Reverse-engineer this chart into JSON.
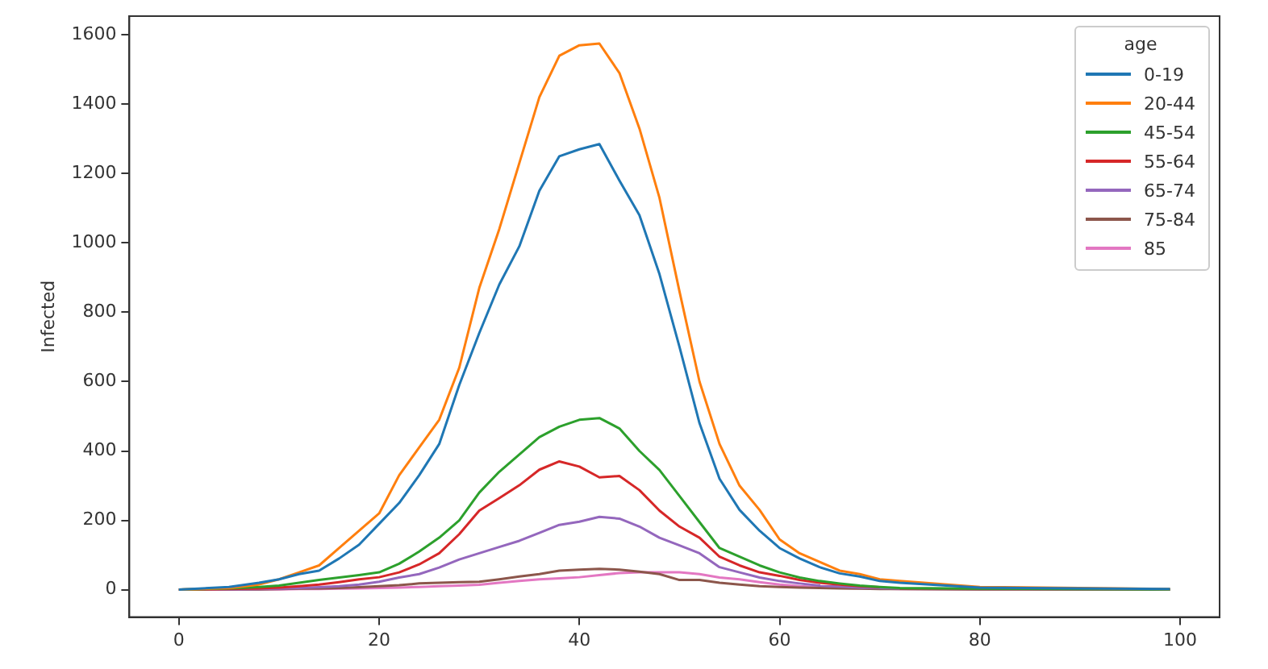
{
  "chart_data": {
    "type": "line",
    "ylabel": "Infected",
    "legend_title": "age",
    "legend": "top right",
    "grid": false,
    "x": [
      0,
      5,
      8,
      10,
      12,
      14,
      16,
      18,
      20,
      22,
      24,
      26,
      28,
      30,
      32,
      34,
      36,
      38,
      40,
      42,
      44,
      46,
      48,
      50,
      52,
      54,
      56,
      58,
      60,
      62,
      64,
      66,
      68,
      70,
      72,
      80,
      99
    ],
    "xlim": [
      -4.95,
      103.95
    ],
    "xticks": [
      0,
      20,
      40,
      60,
      80,
      100
    ],
    "ylim": [
      -79,
      1654
    ],
    "yticks": [
      0,
      200,
      400,
      600,
      800,
      1000,
      1200,
      1400,
      1600
    ],
    "series": [
      {
        "name": "0-19",
        "color": "#1f77b4",
        "values": [
          0,
          8,
          20,
          30,
          45,
          55,
          90,
          130,
          190,
          250,
          330,
          420,
          590,
          740,
          880,
          990,
          1150,
          1250,
          1270,
          1285,
          1180,
          1080,
          910,
          700,
          480,
          320,
          230,
          170,
          120,
          90,
          65,
          47,
          38,
          25,
          20,
          6,
          2
        ]
      },
      {
        "name": "20-44",
        "color": "#ff7f0e",
        "values": [
          0,
          5,
          15,
          30,
          50,
          70,
          120,
          170,
          220,
          330,
          410,
          490,
          640,
          870,
          1040,
          1230,
          1420,
          1540,
          1570,
          1575,
          1490,
          1330,
          1130,
          860,
          600,
          420,
          300,
          230,
          145,
          105,
          80,
          55,
          45,
          30,
          25,
          8,
          2
        ]
      },
      {
        "name": "45-54",
        "color": "#2ca02c",
        "values": [
          0,
          4,
          8,
          12,
          20,
          28,
          35,
          42,
          50,
          75,
          110,
          150,
          200,
          280,
          340,
          390,
          440,
          470,
          490,
          495,
          465,
          400,
          345,
          270,
          195,
          120,
          95,
          70,
          50,
          35,
          25,
          18,
          12,
          8,
          5,
          3,
          1
        ]
      },
      {
        "name": "55-64",
        "color": "#d62728",
        "values": [
          0,
          2,
          4,
          6,
          10,
          15,
          22,
          30,
          36,
          50,
          73,
          105,
          160,
          228,
          264,
          301,
          346,
          370,
          355,
          324,
          328,
          287,
          228,
          182,
          150,
          95,
          70,
          50,
          40,
          28,
          20,
          15,
          10,
          7,
          null,
          null,
          null
        ]
      },
      {
        "name": "65-74",
        "color": "#9467bd",
        "values": [
          0,
          1,
          2,
          3,
          5,
          7,
          10,
          15,
          23,
          35,
          45,
          64,
          87,
          105,
          123,
          141,
          164,
          187,
          196,
          210,
          205,
          182,
          150,
          128,
          105,
          65,
          50,
          35,
          25,
          18,
          12,
          9,
          6,
          5,
          4,
          null,
          null
        ]
      },
      {
        "name": "75-84",
        "color": "#8c564b",
        "values": [
          0,
          1,
          1,
          2,
          3,
          4,
          5,
          7,
          10,
          13,
          18,
          20,
          22,
          23,
          30,
          38,
          45,
          55,
          58,
          60,
          58,
          52,
          45,
          28,
          28,
          20,
          15,
          10,
          8,
          6,
          5,
          4,
          3,
          2,
          2,
          1,
          0
        ]
      },
      {
        "name": "85",
        "color": "#e377c2",
        "values": [
          0,
          0,
          1,
          1,
          2,
          2,
          3,
          4,
          5,
          6,
          8,
          10,
          12,
          14,
          20,
          25,
          30,
          33,
          36,
          42,
          48,
          50,
          50,
          50,
          45,
          35,
          30,
          22,
          15,
          10,
          7,
          5,
          4,
          3,
          2,
          1,
          0
        ]
      }
    ]
  }
}
